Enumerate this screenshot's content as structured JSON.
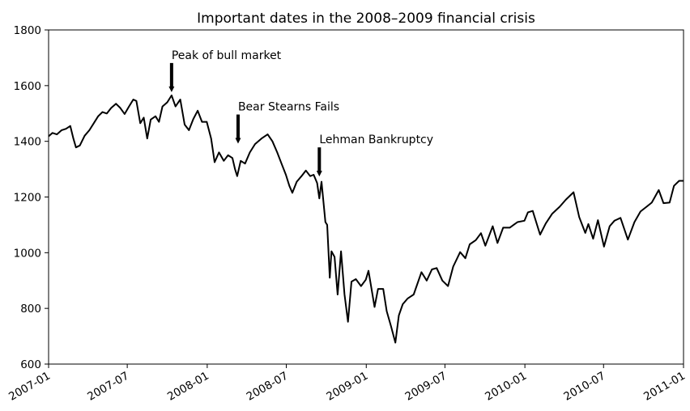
{
  "chart_data": {
    "type": "line",
    "title": "Important dates in the 2008–2009 financial crisis",
    "xlabel": "",
    "ylabel": "",
    "xlim": [
      "2007-01",
      "2011-01"
    ],
    "ylim": [
      600,
      1800
    ],
    "grid": false,
    "y_ticks": [
      600,
      800,
      1000,
      1200,
      1400,
      1600,
      1800
    ],
    "x_ticks": [
      {
        "date": "2007-01",
        "label": "2007-01"
      },
      {
        "date": "2007-07",
        "label": "2007-07"
      },
      {
        "date": "2008-01",
        "label": "2008-01"
      },
      {
        "date": "2008-07",
        "label": "2008-07"
      },
      {
        "date": "2009-01",
        "label": "2009-01"
      },
      {
        "date": "2009-07",
        "label": "2009-07"
      },
      {
        "date": "2010-01",
        "label": "2010-01"
      },
      {
        "date": "2010-07",
        "label": "2010-07"
      },
      {
        "date": "2011-01",
        "label": "2011-01"
      }
    ],
    "annotations": [
      {
        "label": "Peak of bull market",
        "date": "2007-10-11",
        "value": 1565
      },
      {
        "label": "Bear Stearns Fails",
        "date": "2008-03-12",
        "value": 1380
      },
      {
        "label": "Lehman Bankruptcy",
        "date": "2008-09-15",
        "value": 1262
      }
    ],
    "series": [
      {
        "color": "#000000",
        "points": [
          [
            "2007-01-01",
            1418
          ],
          [
            "2007-01-10",
            1430
          ],
          [
            "2007-01-20",
            1425
          ],
          [
            "2007-01-31",
            1440
          ],
          [
            "2007-02-10",
            1445
          ],
          [
            "2007-02-20",
            1455
          ],
          [
            "2007-02-27",
            1410
          ],
          [
            "2007-03-05",
            1378
          ],
          [
            "2007-03-14",
            1385
          ],
          [
            "2007-03-25",
            1420
          ],
          [
            "2007-04-05",
            1440
          ],
          [
            "2007-04-15",
            1465
          ],
          [
            "2007-04-25",
            1490
          ],
          [
            "2007-05-05",
            1505
          ],
          [
            "2007-05-15",
            1500
          ],
          [
            "2007-05-25",
            1520
          ],
          [
            "2007-06-05",
            1535
          ],
          [
            "2007-06-15",
            1520
          ],
          [
            "2007-06-25",
            1498
          ],
          [
            "2007-07-05",
            1525
          ],
          [
            "2007-07-15",
            1550
          ],
          [
            "2007-07-22",
            1545
          ],
          [
            "2007-07-31",
            1465
          ],
          [
            "2007-08-08",
            1485
          ],
          [
            "2007-08-16",
            1410
          ],
          [
            "2007-08-24",
            1478
          ],
          [
            "2007-09-04",
            1490
          ],
          [
            "2007-09-12",
            1470
          ],
          [
            "2007-09-20",
            1525
          ],
          [
            "2007-10-01",
            1540
          ],
          [
            "2007-10-11",
            1565
          ],
          [
            "2007-10-20",
            1525
          ],
          [
            "2007-10-31",
            1550
          ],
          [
            "2007-11-10",
            1460
          ],
          [
            "2007-11-20",
            1440
          ],
          [
            "2007-11-30",
            1480
          ],
          [
            "2007-12-10",
            1510
          ],
          [
            "2007-12-20",
            1470
          ],
          [
            "2007-12-31",
            1470
          ],
          [
            "2008-01-10",
            1410
          ],
          [
            "2008-01-18",
            1325
          ],
          [
            "2008-01-28",
            1360
          ],
          [
            "2008-02-08",
            1330
          ],
          [
            "2008-02-18",
            1350
          ],
          [
            "2008-02-28",
            1340
          ],
          [
            "2008-03-05",
            1300
          ],
          [
            "2008-03-10",
            1275
          ],
          [
            "2008-03-18",
            1330
          ],
          [
            "2008-03-28",
            1320
          ],
          [
            "2008-04-08",
            1360
          ],
          [
            "2008-04-20",
            1390
          ],
          [
            "2008-05-05",
            1410
          ],
          [
            "2008-05-19",
            1425
          ],
          [
            "2008-05-30",
            1400
          ],
          [
            "2008-06-10",
            1360
          ],
          [
            "2008-06-20",
            1320
          ],
          [
            "2008-06-30",
            1280
          ],
          [
            "2008-07-08",
            1240
          ],
          [
            "2008-07-15",
            1215
          ],
          [
            "2008-07-25",
            1255
          ],
          [
            "2008-08-05",
            1275
          ],
          [
            "2008-08-15",
            1295
          ],
          [
            "2008-08-25",
            1275
          ],
          [
            "2008-09-02",
            1280
          ],
          [
            "2008-09-10",
            1250
          ],
          [
            "2008-09-15",
            1195
          ],
          [
            "2008-09-20",
            1255
          ],
          [
            "2008-09-29",
            1110
          ],
          [
            "2008-10-03",
            1100
          ],
          [
            "2008-10-09",
            910
          ],
          [
            "2008-10-13",
            1005
          ],
          [
            "2008-10-20",
            985
          ],
          [
            "2008-10-27",
            850
          ],
          [
            "2008-11-04",
            1005
          ],
          [
            "2008-11-12",
            850
          ],
          [
            "2008-11-20",
            752
          ],
          [
            "2008-11-28",
            896
          ],
          [
            "2008-12-08",
            905
          ],
          [
            "2008-12-20",
            880
          ],
          [
            "2008-12-31",
            903
          ],
          [
            "2009-01-06",
            935
          ],
          [
            "2009-01-20",
            805
          ],
          [
            "2009-01-28",
            870
          ],
          [
            "2009-02-09",
            870
          ],
          [
            "2009-02-17",
            790
          ],
          [
            "2009-02-27",
            735
          ],
          [
            "2009-03-05",
            700
          ],
          [
            "2009-03-09",
            677
          ],
          [
            "2009-03-17",
            775
          ],
          [
            "2009-03-26",
            815
          ],
          [
            "2009-04-06",
            835
          ],
          [
            "2009-04-20",
            850
          ],
          [
            "2009-05-08",
            930
          ],
          [
            "2009-05-20",
            900
          ],
          [
            "2009-06-01",
            940
          ],
          [
            "2009-06-12",
            945
          ],
          [
            "2009-06-25",
            900
          ],
          [
            "2009-07-08",
            880
          ],
          [
            "2009-07-20",
            950
          ],
          [
            "2009-08-05",
            1002
          ],
          [
            "2009-08-17",
            980
          ],
          [
            "2009-08-27",
            1030
          ],
          [
            "2009-09-10",
            1045
          ],
          [
            "2009-09-22",
            1070
          ],
          [
            "2009-10-02",
            1025
          ],
          [
            "2009-10-19",
            1095
          ],
          [
            "2009-10-30",
            1035
          ],
          [
            "2009-11-12",
            1090
          ],
          [
            "2009-11-27",
            1090
          ],
          [
            "2009-12-15",
            1110
          ],
          [
            "2009-12-31",
            1115
          ],
          [
            "2010-01-08",
            1145
          ],
          [
            "2010-01-19",
            1150
          ],
          [
            "2010-02-05",
            1065
          ],
          [
            "2010-02-18",
            1105
          ],
          [
            "2010-03-05",
            1140
          ],
          [
            "2010-03-22",
            1165
          ],
          [
            "2010-04-05",
            1190
          ],
          [
            "2010-04-23",
            1217
          ],
          [
            "2010-05-06",
            1128
          ],
          [
            "2010-05-20",
            1071
          ],
          [
            "2010-05-27",
            1103
          ],
          [
            "2010-06-07",
            1050
          ],
          [
            "2010-06-18",
            1117
          ],
          [
            "2010-07-02",
            1022
          ],
          [
            "2010-07-15",
            1095
          ],
          [
            "2010-07-26",
            1115
          ],
          [
            "2010-08-09",
            1125
          ],
          [
            "2010-08-26",
            1047
          ],
          [
            "2010-09-10",
            1110
          ],
          [
            "2010-09-24",
            1148
          ],
          [
            "2010-10-08",
            1165
          ],
          [
            "2010-10-20",
            1180
          ],
          [
            "2010-11-05",
            1225
          ],
          [
            "2010-11-16",
            1178
          ],
          [
            "2010-11-30",
            1180
          ],
          [
            "2010-12-10",
            1240
          ],
          [
            "2010-12-22",
            1258
          ],
          [
            "2010-12-31",
            1258
          ]
        ]
      }
    ]
  }
}
